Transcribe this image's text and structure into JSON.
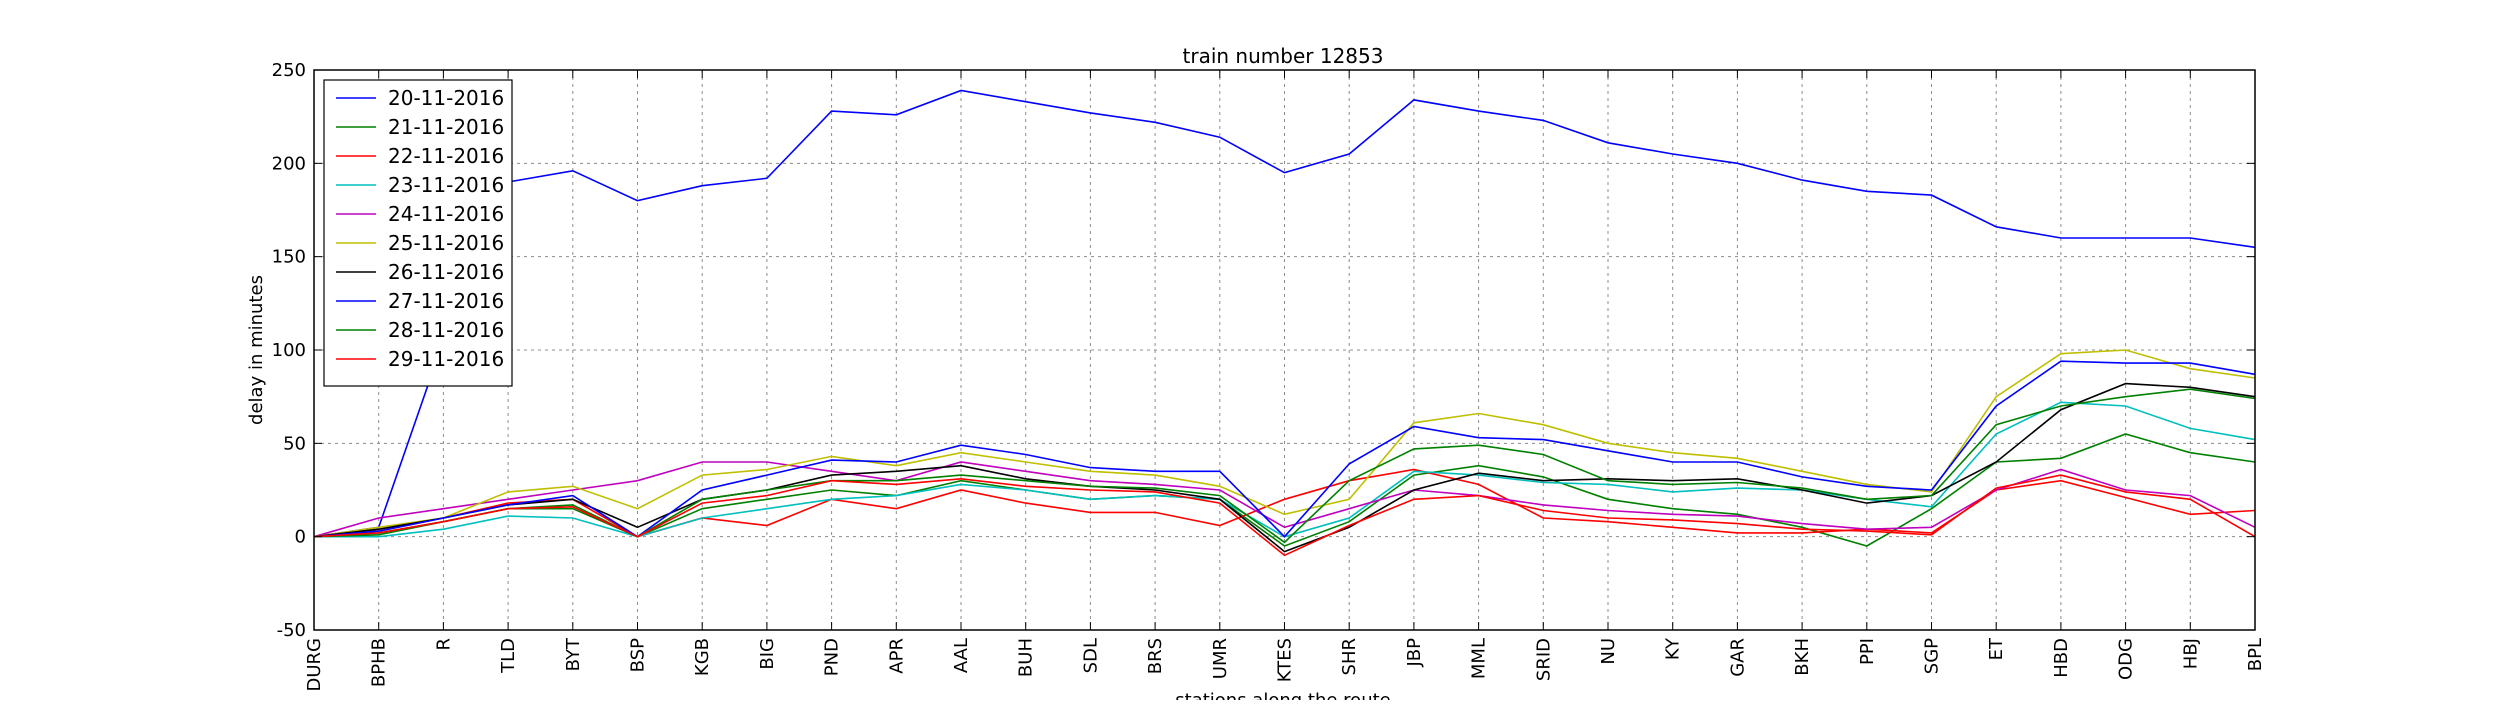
{
  "chart_data": {
    "type": "line",
    "title": "train number 12853",
    "xlabel": "stations along the route",
    "ylabel": "delay in minutes",
    "categories": [
      "DURG",
      "BPHB",
      "R",
      "TLD",
      "BYT",
      "BSP",
      "KGB",
      "BIG",
      "PND",
      "APR",
      "AAL",
      "BUH",
      "SDL",
      "BRS",
      "UMR",
      "KTES",
      "SHR",
      "JBP",
      "MML",
      "SRID",
      "NU",
      "KY",
      "GAR",
      "BKH",
      "PPI",
      "SGP",
      "ET",
      "HBD",
      "ODG",
      "HBJ",
      "BPL"
    ],
    "yticks": [
      -50,
      0,
      50,
      100,
      150,
      200,
      250
    ],
    "ylim": [
      -50,
      250
    ],
    "grid": true,
    "legend_position": "top-left",
    "series": [
      {
        "name": "20-11-2016",
        "color": "#0000ff",
        "values": [
          0,
          5,
          105,
          190,
          196,
          180,
          188,
          192,
          228,
          226,
          239,
          233,
          227,
          222,
          214,
          195,
          205,
          234,
          228,
          223,
          211,
          205,
          200,
          191,
          185,
          183,
          166,
          160,
          160,
          160,
          155
        ]
      },
      {
        "name": "21-11-2016",
        "color": "#008000",
        "values": [
          0,
          2,
          8,
          15,
          17,
          0,
          15,
          20,
          25,
          22,
          30,
          25,
          20,
          22,
          20,
          -5,
          8,
          33,
          38,
          32,
          20,
          15,
          12,
          5,
          -5,
          15,
          40,
          42,
          55,
          45,
          40
        ]
      },
      {
        "name": "22-11-2016",
        "color": "#ff0000",
        "values": [
          0,
          3,
          10,
          18,
          20,
          0,
          10,
          6,
          20,
          15,
          25,
          18,
          13,
          13,
          6,
          20,
          30,
          36,
          28,
          10,
          8,
          5,
          2,
          2,
          4,
          2,
          25,
          30,
          21,
          12,
          14
        ]
      },
      {
        "name": "23-11-2016",
        "color": "#00bfbf",
        "values": [
          0,
          0,
          4,
          11,
          10,
          0,
          10,
          15,
          20,
          22,
          28,
          25,
          20,
          22,
          20,
          0,
          10,
          35,
          33,
          29,
          28,
          24,
          26,
          25,
          20,
          16,
          55,
          72,
          70,
          58,
          52
        ]
      },
      {
        "name": "24-11-2016",
        "color": "#bf00bf",
        "values": [
          0,
          10,
          15,
          20,
          25,
          30,
          40,
          40,
          35,
          30,
          40,
          35,
          30,
          28,
          25,
          5,
          15,
          25,
          22,
          17,
          14,
          12,
          11,
          7,
          4,
          5,
          25,
          36,
          25,
          22,
          5
        ]
      },
      {
        "name": "25-11-2016",
        "color": "#bfbf00",
        "values": [
          0,
          5,
          10,
          24,
          27,
          15,
          33,
          36,
          43,
          38,
          45,
          40,
          35,
          33,
          27,
          12,
          20,
          61,
          66,
          60,
          50,
          45,
          42,
          35,
          28,
          24,
          75,
          98,
          100,
          90,
          85
        ]
      },
      {
        "name": "26-11-2016",
        "color": "#000000",
        "values": [
          0,
          4,
          10,
          17,
          20,
          5,
          20,
          25,
          33,
          35,
          38,
          31,
          27,
          25,
          20,
          -8,
          5,
          25,
          34,
          30,
          31,
          30,
          31,
          25,
          18,
          22,
          40,
          68,
          82,
          80,
          75
        ]
      },
      {
        "name": "27-11-2016",
        "color": "#0000ff",
        "values": [
          0,
          3,
          10,
          17,
          22,
          0,
          25,
          33,
          41,
          40,
          49,
          44,
          37,
          35,
          35,
          0,
          39,
          59,
          53,
          52,
          46,
          40,
          40,
          32,
          27,
          25,
          70,
          94,
          93,
          93,
          87
        ]
      },
      {
        "name": "28-11-2016",
        "color": "#008000",
        "values": [
          0,
          1,
          8,
          15,
          15,
          0,
          20,
          25,
          30,
          30,
          33,
          30,
          27,
          26,
          22,
          -3,
          30,
          47,
          49,
          44,
          30,
          28,
          29,
          26,
          20,
          22,
          60,
          70,
          75,
          79,
          74
        ]
      },
      {
        "name": "29-11-2016",
        "color": "#ff0000",
        "values": [
          0,
          2,
          8,
          15,
          16,
          0,
          18,
          22,
          30,
          28,
          31,
          27,
          25,
          24,
          18,
          -10,
          6,
          20,
          22,
          14,
          10,
          9,
          7,
          4,
          3,
          1,
          26,
          33,
          24,
          20,
          0
        ]
      }
    ]
  }
}
